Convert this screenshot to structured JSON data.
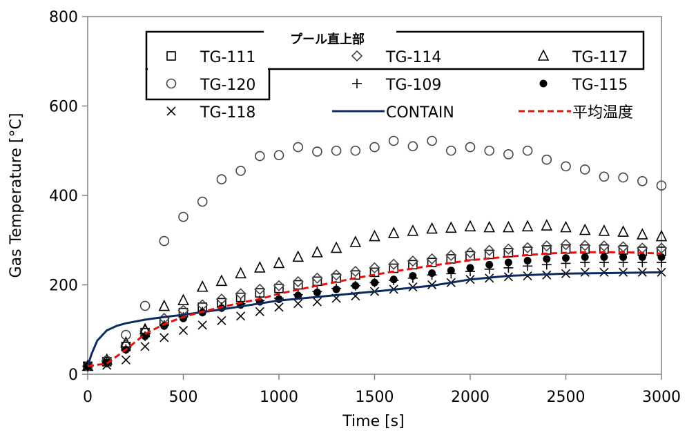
{
  "chart_data": {
    "type": "scatter",
    "title": "プール直上部",
    "xlabel": "Time [s]",
    "ylabel": "Gas  Temperature [°C]",
    "xlim": [
      0,
      3000
    ],
    "ylim": [
      0,
      800
    ],
    "xticks": [
      0,
      500,
      1000,
      1500,
      2000,
      2500,
      3000
    ],
    "yticks": [
      0,
      200,
      400,
      600,
      800
    ],
    "grid": false,
    "legend_placement": "top",
    "series": [
      {
        "name": "TG-111",
        "marker": "square",
        "color": "#000000",
        "x": [
          0,
          100,
          200,
          300,
          400,
          500,
          600,
          700,
          800,
          900,
          1000,
          1100,
          1200,
          1300,
          1400,
          1500,
          1600,
          1700,
          1800,
          1900,
          2000,
          2100,
          2200,
          2300,
          2400,
          2500,
          2600,
          2700,
          2800,
          2900,
          3000
        ],
        "y": [
          18,
          28,
          62,
          93,
          118,
          138,
          150,
          160,
          172,
          182,
          192,
          200,
          208,
          215,
          222,
          228,
          237,
          245,
          250,
          258,
          265,
          268,
          272,
          275,
          278,
          280,
          280,
          280,
          278,
          275,
          275
        ]
      },
      {
        "name": "TG-114",
        "marker": "diamond",
        "color": "#444444",
        "x": [
          0,
          100,
          200,
          300,
          400,
          500,
          600,
          700,
          800,
          900,
          1000,
          1100,
          1200,
          1300,
          1400,
          1500,
          1600,
          1700,
          1800,
          1900,
          2000,
          2100,
          2200,
          2300,
          2400,
          2500,
          2600,
          2700,
          2800,
          2900,
          3000
        ],
        "y": [
          18,
          30,
          65,
          97,
          125,
          143,
          155,
          168,
          180,
          190,
          198,
          207,
          215,
          222,
          230,
          238,
          246,
          253,
          258,
          266,
          272,
          277,
          280,
          283,
          287,
          290,
          288,
          287,
          285,
          282,
          282
        ]
      },
      {
        "name": "TG-117",
        "marker": "triangle",
        "color": "#000000",
        "x": [
          0,
          100,
          200,
          300,
          400,
          500,
          600,
          700,
          800,
          900,
          1000,
          1100,
          1200,
          1300,
          1400,
          1500,
          1600,
          1700,
          1800,
          1900,
          2000,
          2100,
          2200,
          2300,
          2400,
          2500,
          2600,
          2700,
          2800,
          2900,
          3000
        ],
        "y": [
          18,
          32,
          70,
          100,
          152,
          165,
          195,
          208,
          225,
          238,
          248,
          262,
          272,
          282,
          295,
          308,
          315,
          320,
          325,
          327,
          330,
          328,
          328,
          330,
          332,
          328,
          322,
          320,
          318,
          312,
          308
        ]
      },
      {
        "name": "TG-120",
        "marker": "circle",
        "color": "#444444",
        "x": [
          0,
          100,
          200,
          300,
          400,
          500,
          600,
          700,
          800,
          900,
          1000,
          1100,
          1200,
          1300,
          1400,
          1500,
          1600,
          1700,
          1800,
          1900,
          2000,
          2100,
          2200,
          2300,
          2400,
          2500,
          2600,
          2700,
          2800,
          2900,
          3000
        ],
        "y": [
          18,
          30,
          88,
          153,
          298,
          352,
          386,
          436,
          455,
          488,
          490,
          508,
          498,
          500,
          500,
          508,
          522,
          510,
          522,
          500,
          508,
          500,
          492,
          500,
          480,
          465,
          458,
          442,
          440,
          432,
          422
        ]
      },
      {
        "name": "TG-109",
        "marker": "plus",
        "color": "#000000",
        "x": [
          0,
          100,
          200,
          300,
          400,
          500,
          600,
          700,
          800,
          900,
          1000,
          1100,
          1200,
          1300,
          1400,
          1500,
          1600,
          1700,
          1800,
          1900,
          2000,
          2100,
          2200,
          2300,
          2400,
          2500,
          2600,
          2700,
          2800,
          2900,
          3000
        ],
        "y": [
          18,
          26,
          56,
          85,
          110,
          128,
          140,
          150,
          158,
          165,
          170,
          178,
          185,
          192,
          198,
          205,
          210,
          215,
          222,
          225,
          230,
          235,
          238,
          242,
          245,
          248,
          250,
          250,
          250,
          250,
          250
        ]
      },
      {
        "name": "TG-115",
        "marker": "filled-circle",
        "color": "#000000",
        "x": [
          0,
          100,
          200,
          300,
          400,
          500,
          600,
          700,
          800,
          900,
          1000,
          1100,
          1200,
          1300,
          1400,
          1500,
          1600,
          1700,
          1800,
          1900,
          2000,
          2100,
          2200,
          2300,
          2400,
          2500,
          2600,
          2700,
          2800,
          2900,
          3000
        ],
        "y": [
          18,
          26,
          55,
          85,
          108,
          125,
          138,
          148,
          155,
          162,
          168,
          176,
          183,
          190,
          198,
          205,
          212,
          220,
          226,
          232,
          238,
          245,
          250,
          254,
          258,
          260,
          262,
          262,
          262,
          262,
          262
        ]
      },
      {
        "name": "TG-118",
        "marker": "cross",
        "color": "#000000",
        "x": [
          0,
          100,
          200,
          300,
          400,
          500,
          600,
          700,
          800,
          900,
          1000,
          1100,
          1200,
          1300,
          1400,
          1500,
          1600,
          1700,
          1800,
          1900,
          2000,
          2100,
          2200,
          2300,
          2400,
          2500,
          2600,
          2700,
          2800,
          2900,
          3000
        ],
        "y": [
          18,
          20,
          32,
          62,
          82,
          98,
          110,
          120,
          130,
          140,
          150,
          158,
          162,
          170,
          175,
          185,
          190,
          195,
          200,
          205,
          212,
          215,
          218,
          220,
          222,
          225,
          228,
          228,
          228,
          228,
          228
        ]
      },
      {
        "name": "CONTAIN",
        "line": "solid",
        "color": "#0d2a5e",
        "x": [
          0,
          20,
          50,
          100,
          150,
          200,
          300,
          400,
          500,
          700,
          1000,
          1500,
          1800,
          1900,
          2000,
          2200,
          2500,
          3000
        ],
        "y": [
          18,
          45,
          75,
          98,
          108,
          114,
          122,
          128,
          133,
          145,
          165,
          185,
          198,
          205,
          212,
          220,
          225,
          228
        ]
      },
      {
        "name": "平均温度",
        "line": "dashed",
        "color": "#e3100d",
        "x": [
          0,
          100,
          200,
          300,
          400,
          500,
          600,
          700,
          800,
          900,
          1000,
          1200,
          1400,
          1600,
          1800,
          2000,
          2200,
          2400,
          2600,
          2800,
          3000
        ],
        "y": [
          18,
          24,
          55,
          90,
          112,
          128,
          140,
          150,
          160,
          168,
          180,
          198,
          215,
          230,
          243,
          255,
          263,
          270,
          273,
          273,
          270
        ]
      }
    ]
  }
}
